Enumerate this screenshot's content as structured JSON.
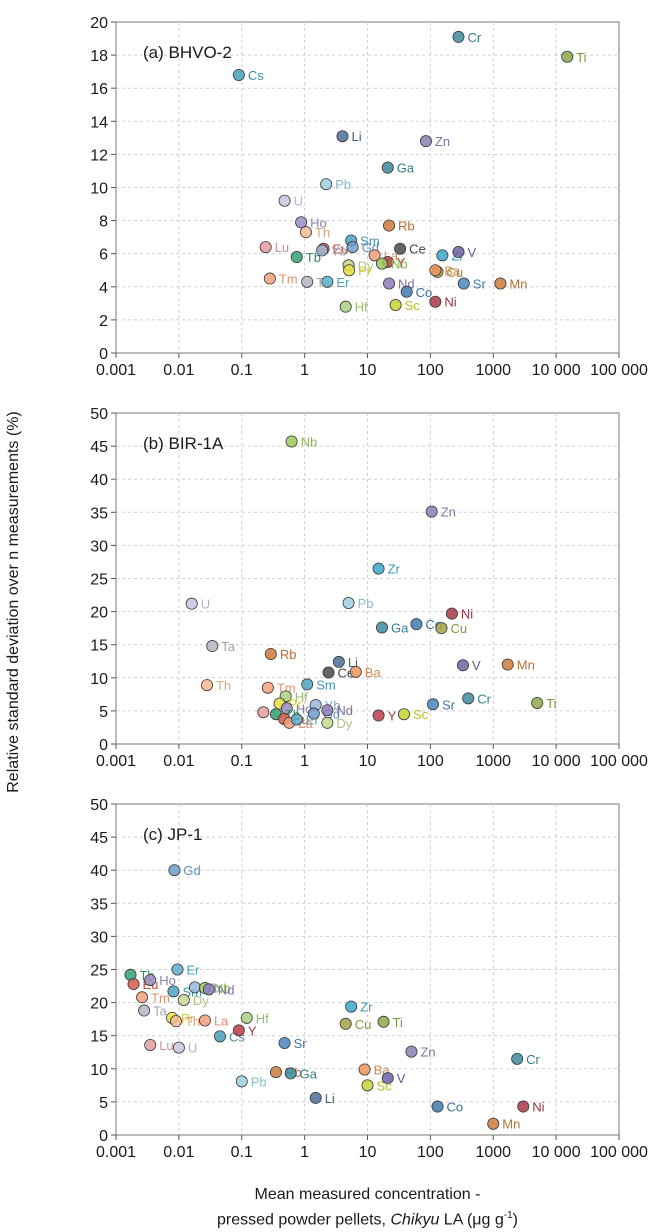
{
  "figure": {
    "ylabel": "Relative standard deviation over n measurements (%)",
    "xlabel_line1": "Mean measured concentration -",
    "xlabel_line2_prefix": "pressed powder pellets, ",
    "xlabel_line2_italic": "Chikyu",
    "xlabel_line2_mid": " LA (μg g",
    "xlabel_line2_sup": "-1",
    "xlabel_line2_end": ")"
  },
  "x_ticks": [
    "0.001",
    "0.01",
    "0.1",
    "1",
    "10",
    "100",
    "1000",
    "10 000",
    "100 000"
  ],
  "element_colors": {
    "Cr": "#3e8a9e",
    "Ti": "#8aa848",
    "Cs": "#4a9cb8",
    "Li": "#4c6e96",
    "Zn": "#8a80b4",
    "Ga": "#3b8a9c",
    "Pb": "#9ccee0",
    "U": "#c4c8e0",
    "Ho": "#9a8cc6",
    "Eu": "#d25a48",
    "Rb": "#cc7a3a",
    "Th": "#f6b890",
    "Yb": "#9ab8d8",
    "Sm": "#4aa2c2",
    "Gd": "#6e9ed0",
    "Ce": "#4a4a4a",
    "Zr": "#3aa8c8",
    "V": "#6e62a6",
    "Lu": "#e49e9e",
    "Tb": "#34a070",
    "Dy": "#c6d890",
    "La": "#f29e7a",
    "Y": "#b83c4a",
    "Nb": "#9aca5a",
    "Cu": "#a2a242",
    "Mn": "#cc7a3a",
    "Tm": "#f4a07c",
    "Ta": "#b4b4c4",
    "Er": "#5ab0cc",
    "Pr": "#e8e042",
    "Nd": "#8c7cbe",
    "Ba": "#ec965a",
    "Co": "#3e7ab0",
    "Sr": "#4c84c0",
    "Hf": "#a8d080",
    "Sc": "#c8d430",
    "Ni": "#a83848"
  },
  "chart_data": [
    {
      "type": "scatter",
      "title": "(a) BHVO-2",
      "xscale": "log",
      "xlim": [
        0.001,
        100000
      ],
      "ylim": [
        0,
        20
      ],
      "yticks": [
        0,
        2,
        4,
        6,
        8,
        10,
        12,
        14,
        16,
        18,
        20
      ],
      "grid": true,
      "points": [
        {
          "label": "Cr",
          "x": 280,
          "y": 19.1
        },
        {
          "label": "Ti",
          "x": 15000,
          "y": 17.9
        },
        {
          "label": "Cs",
          "x": 0.09,
          "y": 16.8
        },
        {
          "label": "Li",
          "x": 4,
          "y": 13.1
        },
        {
          "label": "Zn",
          "x": 85,
          "y": 12.8
        },
        {
          "label": "Ga",
          "x": 21,
          "y": 11.2
        },
        {
          "label": "Pb",
          "x": 2.2,
          "y": 10.2
        },
        {
          "label": "U",
          "x": 0.48,
          "y": 9.2
        },
        {
          "label": "Ho",
          "x": 0.88,
          "y": 7.9
        },
        {
          "label": "Eu",
          "x": 2,
          "y": 6.3
        },
        {
          "label": "Rb",
          "x": 22,
          "y": 7.7
        },
        {
          "label": "Th",
          "x": 1.05,
          "y": 7.3
        },
        {
          "label": "Yb",
          "x": 1.9,
          "y": 6.2
        },
        {
          "label": "Sm",
          "x": 5.5,
          "y": 6.8
        },
        {
          "label": "Gd",
          "x": 5.8,
          "y": 6.4
        },
        {
          "label": "Ce",
          "x": 33,
          "y": 6.3
        },
        {
          "label": "Zr",
          "x": 155,
          "y": 5.9
        },
        {
          "label": "V",
          "x": 280,
          "y": 6.1
        },
        {
          "label": "Lu",
          "x": 0.24,
          "y": 6.4
        },
        {
          "label": "Tb",
          "x": 0.75,
          "y": 5.8
        },
        {
          "label": "Dy",
          "x": 5,
          "y": 5.3
        },
        {
          "label": "La",
          "x": 13,
          "y": 5.9
        },
        {
          "label": "Y",
          "x": 21,
          "y": 5.5
        },
        {
          "label": "Nb",
          "x": 17,
          "y": 5.4
        },
        {
          "label": "Cu",
          "x": 130,
          "y": 4.9
        },
        {
          "label": "Mn",
          "x": 1300,
          "y": 4.2
        },
        {
          "label": "Tm",
          "x": 0.28,
          "y": 4.5
        },
        {
          "label": "Ta",
          "x": 1.1,
          "y": 4.3
        },
        {
          "label": "Er",
          "x": 2.3,
          "y": 4.3
        },
        {
          "label": "Pr",
          "x": 5.1,
          "y": 5.0
        },
        {
          "label": "Nd",
          "x": 22,
          "y": 4.2
        },
        {
          "label": "Ba",
          "x": 120,
          "y": 5.0
        },
        {
          "label": "Co",
          "x": 42,
          "y": 3.7
        },
        {
          "label": "Sr",
          "x": 340,
          "y": 4.2
        },
        {
          "label": "Hf",
          "x": 4.5,
          "y": 2.8
        },
        {
          "label": "Sc",
          "x": 28,
          "y": 2.9
        },
        {
          "label": "Ni",
          "x": 120,
          "y": 3.1
        }
      ]
    },
    {
      "type": "scatter",
      "title": "(b) BIR-1A",
      "xscale": "log",
      "xlim": [
        0.001,
        100000
      ],
      "ylim": [
        0,
        50
      ],
      "yticks": [
        0,
        5,
        10,
        15,
        20,
        25,
        30,
        35,
        40,
        45,
        50
      ],
      "grid": true,
      "points": [
        {
          "label": "Nb",
          "x": 0.62,
          "y": 45.7
        },
        {
          "label": "Zn",
          "x": 105,
          "y": 35.1
        },
        {
          "label": "Zr",
          "x": 15,
          "y": 26.5
        },
        {
          "label": "U",
          "x": 0.016,
          "y": 21.2
        },
        {
          "label": "Pb",
          "x": 5,
          "y": 21.3
        },
        {
          "label": "Ga",
          "x": 17,
          "y": 17.6
        },
        {
          "label": "Co",
          "x": 60,
          "y": 18.1
        },
        {
          "label": "Ni",
          "x": 220,
          "y": 19.7
        },
        {
          "label": "Cu",
          "x": 150,
          "y": 17.5
        },
        {
          "label": "Ta",
          "x": 0.034,
          "y": 14.8
        },
        {
          "label": "Rb",
          "x": 0.29,
          "y": 13.6
        },
        {
          "label": "Li",
          "x": 3.5,
          "y": 12.4
        },
        {
          "label": "Ce",
          "x": 2.4,
          "y": 10.8
        },
        {
          "label": "Ba",
          "x": 6.5,
          "y": 10.9
        },
        {
          "label": "Sm",
          "x": 1.1,
          "y": 9.0
        },
        {
          "label": "V",
          "x": 330,
          "y": 11.9
        },
        {
          "label": "Mn",
          "x": 1700,
          "y": 12.0
        },
        {
          "label": "Th",
          "x": 0.028,
          "y": 8.9
        },
        {
          "label": "Tm",
          "x": 0.26,
          "y": 8.5
        },
        {
          "label": "Hf",
          "x": 0.5,
          "y": 7.2
        },
        {
          "label": "Pr",
          "x": 0.4,
          "y": 6.1
        },
        {
          "label": "Ho",
          "x": 0.52,
          "y": 5.4
        },
        {
          "label": "Yb",
          "x": 1.5,
          "y": 5.9
        },
        {
          "label": "Cr",
          "x": 400,
          "y": 6.9
        },
        {
          "label": "Sr",
          "x": 110,
          "y": 6.0
        },
        {
          "label": "Ti",
          "x": 5000,
          "y": 6.2
        },
        {
          "label": "Lu",
          "x": 0.22,
          "y": 4.8
        },
        {
          "label": "Tb",
          "x": 0.35,
          "y": 4.5
        },
        {
          "label": "Eu",
          "x": 0.47,
          "y": 3.8
        },
        {
          "label": "La",
          "x": 0.57,
          "y": 3.2
        },
        {
          "label": "Er",
          "x": 0.75,
          "y": 3.7
        },
        {
          "label": "Gd",
          "x": 1.4,
          "y": 4.6
        },
        {
          "label": "Nd",
          "x": 2.3,
          "y": 5.1
        },
        {
          "label": "Dy",
          "x": 2.3,
          "y": 3.2
        },
        {
          "label": "Y",
          "x": 15,
          "y": 4.3
        },
        {
          "label": "Sc",
          "x": 38,
          "y": 4.5
        }
      ]
    },
    {
      "type": "scatter",
      "title": "(c) JP-1",
      "xscale": "log",
      "xlim": [
        0.001,
        100000
      ],
      "ylim": [
        0,
        50
      ],
      "yticks": [
        0,
        5,
        10,
        15,
        20,
        25,
        30,
        35,
        40,
        45,
        50
      ],
      "grid": true,
      "points": [
        {
          "label": "Gd",
          "x": 0.0085,
          "y": 40.0
        },
        {
          "label": "Tb",
          "x": 0.0017,
          "y": 24.2
        },
        {
          "label": "Eu",
          "x": 0.0019,
          "y": 22.8
        },
        {
          "label": "Ho",
          "x": 0.0035,
          "y": 23.4
        },
        {
          "label": "Er",
          "x": 0.0095,
          "y": 25.0
        },
        {
          "label": "Sm",
          "x": 0.0082,
          "y": 21.7
        },
        {
          "label": "Yb",
          "x": 0.018,
          "y": 22.3
        },
        {
          "label": "Nb",
          "x": 0.026,
          "y": 22.2
        },
        {
          "label": "Nd",
          "x": 0.03,
          "y": 22.0
        },
        {
          "label": "Tm",
          "x": 0.0026,
          "y": 20.8
        },
        {
          "label": "Dy",
          "x": 0.012,
          "y": 20.4
        },
        {
          "label": "Ta",
          "x": 0.0028,
          "y": 18.8
        },
        {
          "label": "Pr",
          "x": 0.0078,
          "y": 17.7
        },
        {
          "label": "Th",
          "x": 0.009,
          "y": 17.2
        },
        {
          "label": "La",
          "x": 0.026,
          "y": 17.3
        },
        {
          "label": "Hf",
          "x": 0.12,
          "y": 17.7
        },
        {
          "label": "Cs",
          "x": 0.045,
          "y": 14.9
        },
        {
          "label": "Y",
          "x": 0.09,
          "y": 15.8
        },
        {
          "label": "Lu",
          "x": 0.0035,
          "y": 13.6
        },
        {
          "label": "U",
          "x": 0.01,
          "y": 13.2
        },
        {
          "label": "Zr",
          "x": 5.5,
          "y": 19.4
        },
        {
          "label": "Cu",
          "x": 4.5,
          "y": 16.8
        },
        {
          "label": "Ti",
          "x": 18,
          "y": 17.1
        },
        {
          "label": "Sr",
          "x": 0.48,
          "y": 13.9
        },
        {
          "label": "Zn",
          "x": 50,
          "y": 12.6
        },
        {
          "label": "Cr",
          "x": 2400,
          "y": 11.5
        },
        {
          "label": "Rb",
          "x": 0.35,
          "y": 9.5
        },
        {
          "label": "Ga",
          "x": 0.6,
          "y": 9.3
        },
        {
          "label": "Ba",
          "x": 9,
          "y": 9.9
        },
        {
          "label": "V",
          "x": 21,
          "y": 8.6
        },
        {
          "label": "Pb",
          "x": 0.1,
          "y": 8.1
        },
        {
          "label": "Sc",
          "x": 10,
          "y": 7.5
        },
        {
          "label": "Li",
          "x": 1.5,
          "y": 5.6
        },
        {
          "label": "Co",
          "x": 130,
          "y": 4.3
        },
        {
          "label": "Ni",
          "x": 3000,
          "y": 4.3
        },
        {
          "label": "Mn",
          "x": 1000,
          "y": 1.7
        }
      ]
    }
  ]
}
